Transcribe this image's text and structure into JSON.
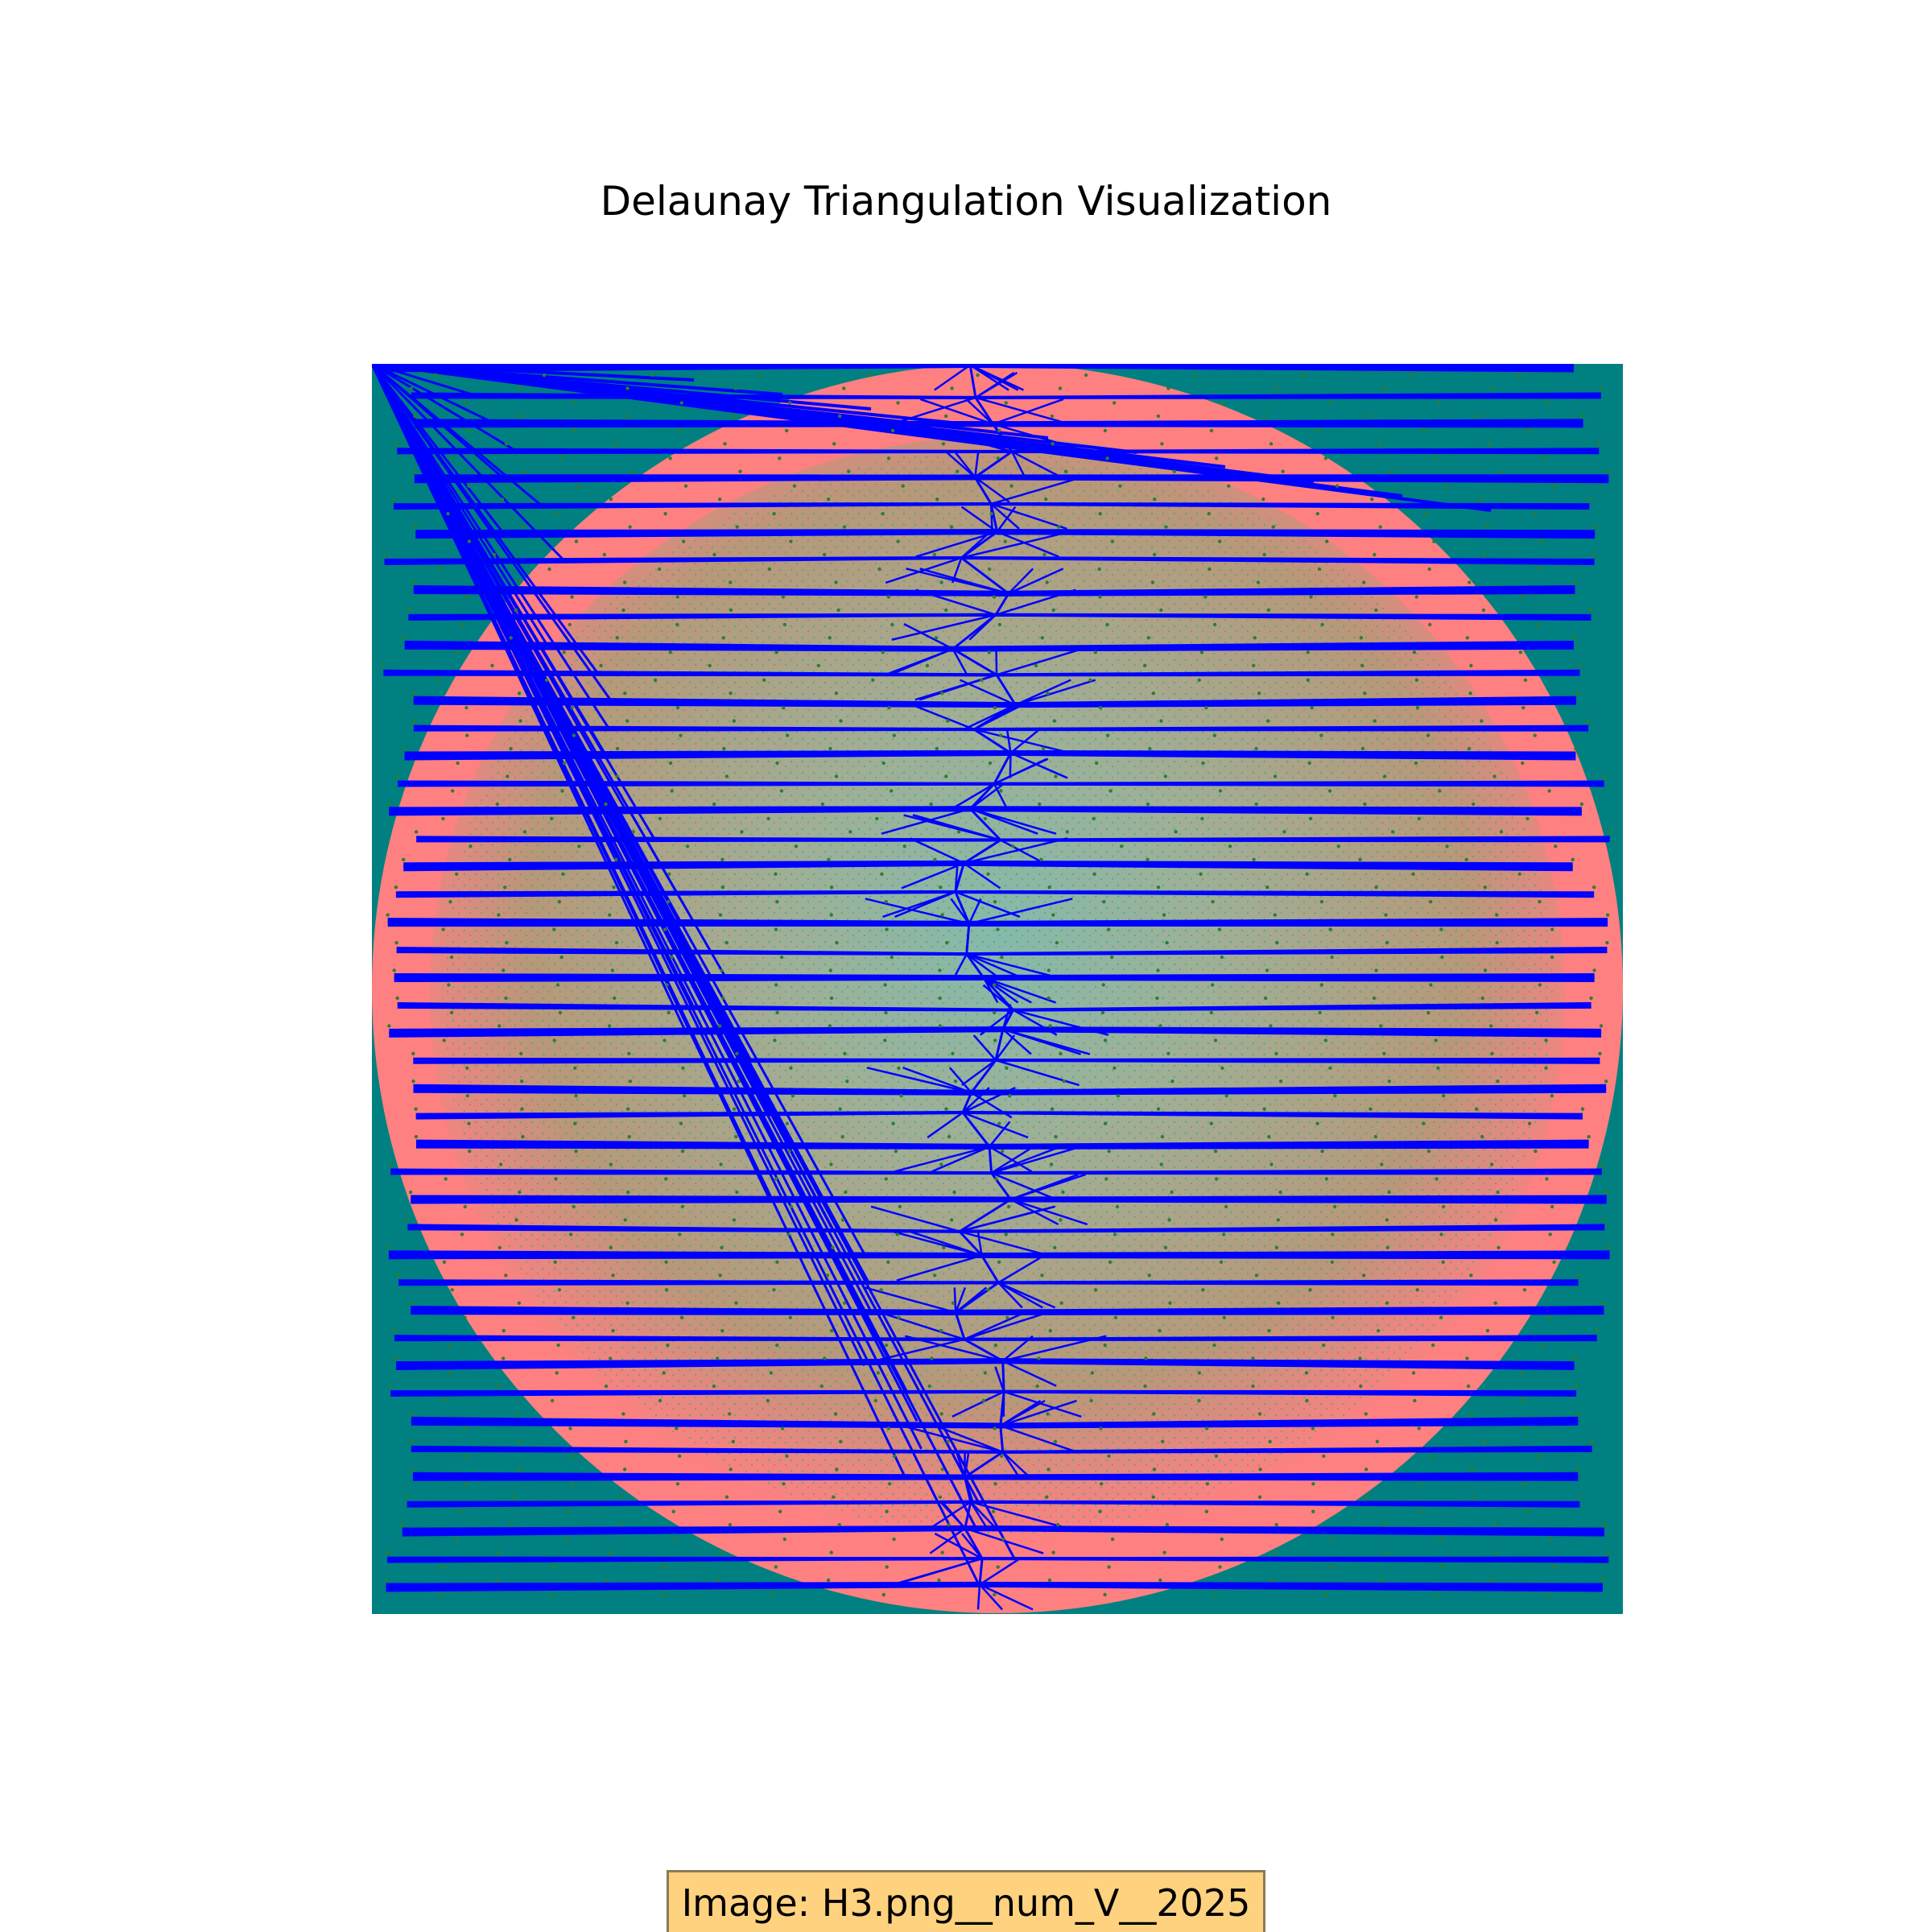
{
  "title": "Delaunay Triangulation Visualization",
  "caption": "Image: H3.png__num_V__2025",
  "colors": {
    "background": "#008080",
    "disk": "#ff8080",
    "tissue": "#b09a78",
    "tissue_center": "#6fc4b2",
    "edges": "#0000ff",
    "vertices": "#2e7d32",
    "caption_fill": "#ffd27f",
    "caption_border": "#8a7a5a"
  },
  "graph": {
    "vertex_count_label": "2025",
    "row_count": 45,
    "points_per_row": 45
  }
}
